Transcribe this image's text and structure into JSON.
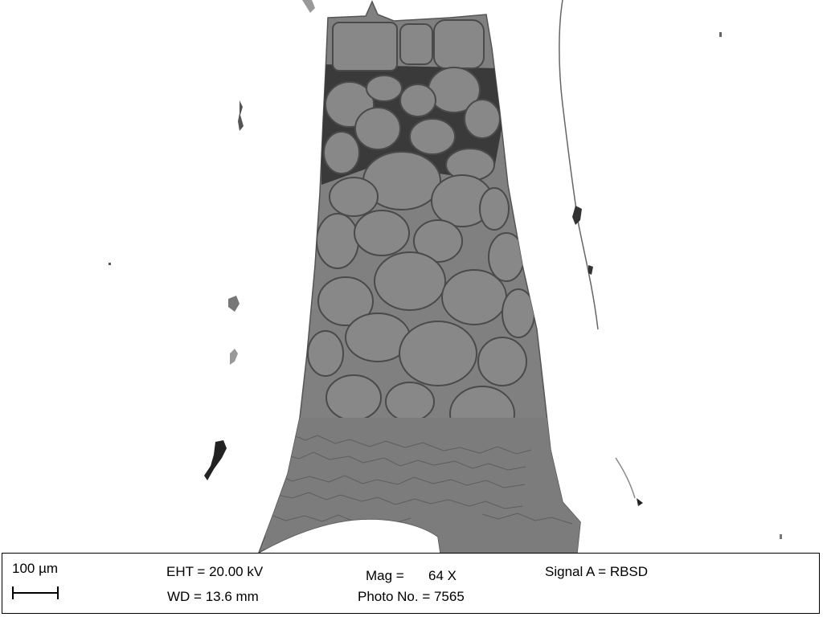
{
  "image": {
    "subject": "",
    "colors": {
      "background": "#ffffff",
      "specimen": "#808080",
      "grain": "#8a8a8a",
      "boundary": "#5a5a5a",
      "pore": "#111111"
    }
  },
  "databar": {
    "scale_label": "100 µm",
    "eht": "EHT = 20.00 kV",
    "wd": "WD = 13.6 mm",
    "mag_label": "Mag =",
    "mag_value": "64 X",
    "photo": "Photo No. = 7565",
    "signal": "Signal A = RBSD"
  }
}
